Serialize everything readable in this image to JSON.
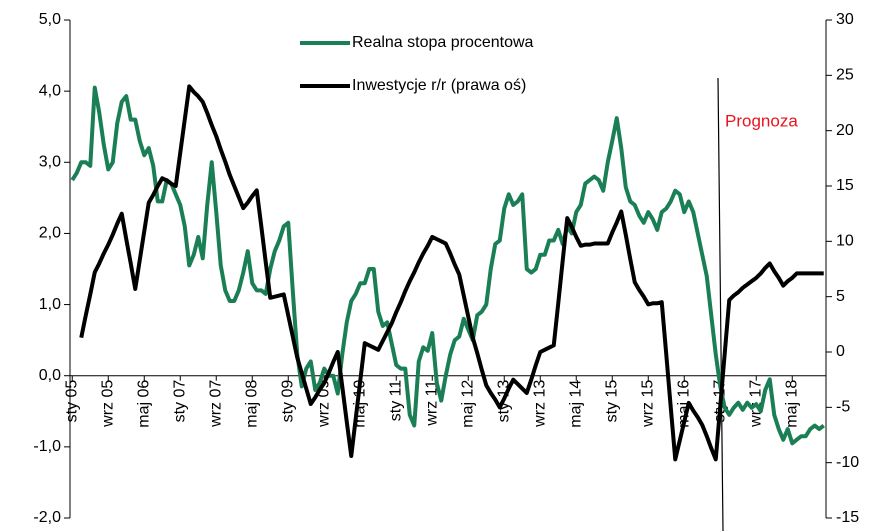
{
  "chart_data": {
    "type": "line",
    "annotation": "Prognoza",
    "categories": [
      "sty 05",
      null,
      null,
      null,
      null,
      null,
      null,
      null,
      "wrz 05",
      null,
      null,
      null,
      null,
      null,
      null,
      null,
      "maj 06",
      null,
      null,
      null,
      null,
      null,
      null,
      null,
      "sty 07",
      null,
      null,
      null,
      null,
      null,
      null,
      null,
      "wrz 07",
      null,
      null,
      null,
      null,
      null,
      null,
      null,
      "maj 08",
      null,
      null,
      null,
      null,
      null,
      null,
      null,
      "sty 09",
      null,
      null,
      null,
      null,
      null,
      null,
      null,
      "wrz 09",
      null,
      null,
      null,
      null,
      null,
      null,
      null,
      "maj 10",
      null,
      null,
      null,
      null,
      null,
      null,
      null,
      "sty 11",
      null,
      null,
      null,
      null,
      null,
      null,
      null,
      "wrz 11",
      null,
      null,
      null,
      null,
      null,
      null,
      null,
      "maj 12",
      null,
      null,
      null,
      null,
      null,
      null,
      null,
      "sty 13",
      null,
      null,
      null,
      null,
      null,
      null,
      null,
      "wrz 13",
      null,
      null,
      null,
      null,
      null,
      null,
      null,
      "maj 14",
      null,
      null,
      null,
      null,
      null,
      null,
      null,
      "sty 15",
      null,
      null,
      null,
      null,
      null,
      null,
      null,
      "wrz 15",
      null,
      null,
      null,
      null,
      null,
      null,
      null,
      "maj 16",
      null,
      null,
      null,
      null,
      null,
      null,
      null,
      "sty 17",
      null,
      null,
      null,
      null,
      null,
      null,
      null,
      "wrz 17",
      null,
      null,
      null,
      null,
      null,
      null,
      null,
      "maj 18",
      null,
      null,
      null,
      null,
      null,
      null,
      null
    ],
    "series": [
      {
        "name": "Realna stopa procentowa",
        "color": "#1b7f56",
        "values": [
          2.75,
          2.85,
          3.0,
          3.0,
          2.95,
          4.05,
          3.7,
          3.25,
          2.9,
          3.0,
          3.55,
          3.85,
          3.93,
          3.6,
          3.6,
          3.3,
          3.1,
          3.2,
          2.95,
          2.45,
          2.45,
          2.75,
          2.7,
          2.55,
          2.4,
          2.1,
          1.55,
          1.7,
          1.95,
          1.65,
          2.4,
          3.0,
          2.3,
          1.55,
          1.2,
          1.05,
          1.05,
          1.2,
          1.45,
          1.75,
          1.3,
          1.2,
          1.2,
          1.15,
          1.5,
          1.75,
          1.9,
          2.1,
          2.15,
          1.2,
          0.3,
          -0.15,
          0.1,
          0.2,
          -0.2,
          -0.1,
          0.1,
          0.0,
          0.0,
          -0.25,
          0.3,
          0.75,
          1.05,
          1.15,
          1.3,
          1.3,
          1.5,
          1.5,
          0.9,
          0.7,
          0.75,
          0.45,
          0.15,
          0.1,
          0.1,
          -0.55,
          -0.7,
          0.2,
          0.4,
          0.35,
          0.6,
          -0.1,
          -0.35,
          0.0,
          0.3,
          0.5,
          0.55,
          0.8,
          0.65,
          0.5,
          0.85,
          0.9,
          1.0,
          1.5,
          1.85,
          1.9,
          2.35,
          2.55,
          2.4,
          2.45,
          2.55,
          1.5,
          1.45,
          1.5,
          1.7,
          1.7,
          1.9,
          1.9,
          2.05,
          1.85,
          2.1,
          2.0,
          2.3,
          2.4,
          2.7,
          2.75,
          2.8,
          2.75,
          2.6,
          3.0,
          3.3,
          3.62,
          3.2,
          2.65,
          2.45,
          2.4,
          2.25,
          2.15,
          2.3,
          2.2,
          2.05,
          2.3,
          2.35,
          2.45,
          2.6,
          2.55,
          2.3,
          2.45,
          2.3,
          2.0,
          1.7,
          1.4,
          0.85,
          0.3,
          -0.15,
          -0.45,
          -0.55,
          -0.45,
          -0.38,
          -0.48,
          -0.38,
          -0.45,
          -0.4,
          -0.5,
          -0.2,
          -0.05,
          -0.55,
          -0.75,
          -0.9,
          -0.75,
          -0.95,
          -0.9,
          -0.85,
          -0.85,
          -0.75,
          -0.7,
          -0.75,
          -0.7
        ]
      },
      {
        "name": "Inwestycje r/r (prawa oś)",
        "color": "#000000",
        "axis": "y2",
        "values": [
          null,
          null,
          1.3,
          3.3,
          5.2,
          7.2,
          8.0,
          8.9,
          9.7,
          10.6,
          11.6,
          12.5,
          10.2,
          8.0,
          5.7,
          8.3,
          10.9,
          13.5,
          14.2,
          15.0,
          15.7,
          15.5,
          15.2,
          15,
          18,
          21,
          24,
          23.5,
          23.1,
          22.6,
          21.6,
          20.5,
          19.5,
          18.3,
          17.2,
          16,
          15,
          14,
          13,
          13.5,
          14.1,
          14.6,
          11.4,
          8.1,
          4.9,
          5.0,
          5.1,
          5.2,
          3.3,
          1.4,
          -0.5,
          -1.9,
          -3.3,
          -4.7,
          -4.1,
          -3.4,
          -2.8,
          -1.9,
          -0.9,
          0,
          -3.1,
          -6.3,
          -9.4,
          -6.0,
          -2.6,
          0.8,
          0.6,
          0.4,
          0.2,
          1.0,
          1.8,
          2.6,
          3.6,
          4.5,
          5.5,
          6.4,
          7.2,
          8.1,
          8.9,
          9.6,
          10.4,
          10.2,
          10.0,
          9.8,
          8.9,
          7.9,
          7,
          5.1,
          3.2,
          1.3,
          -0.1,
          -1.6,
          -3,
          -3.7,
          -4.3,
          -5,
          -4.2,
          -3.3,
          -2.5,
          -2.9,
          -3.3,
          -3.7,
          -2.5,
          -1.2,
          0,
          0.2,
          0.4,
          0.6,
          4.4,
          8.3,
          12.1,
          11.3,
          10.4,
          9.6,
          9.7,
          9.7,
          9.8,
          9.8,
          9.8,
          9.8,
          10.8,
          11.7,
          12.7,
          10.6,
          8.4,
          6.3,
          5.6,
          5.0,
          4.3,
          4.4,
          4.4,
          4.5,
          -0.2,
          -5.0,
          -9.7,
          -8.0,
          -6.3,
          -4.6,
          -5.3,
          -5.9,
          -6.6,
          -7.6,
          -8.7,
          -9.7,
          -4.9,
          -0.1,
          4.7,
          5.1,
          5.4,
          5.8,
          6.1,
          6.4,
          6.7,
          7.1,
          7.6,
          8,
          7.3,
          6.7,
          6,
          6.4,
          6.7,
          7.1,
          7.1,
          7.1,
          7.1,
          7.1,
          7.1,
          7.1
        ]
      }
    ],
    "ylim": [
      -2,
      5
    ],
    "yticks": [
      {
        "value": -2,
        "label": "-2,0"
      },
      {
        "value": -1,
        "label": "-1,0"
      },
      {
        "value": 0,
        "label": "0,0"
      },
      {
        "value": 1,
        "label": "1,0"
      },
      {
        "value": 2,
        "label": "2,0"
      },
      {
        "value": 3,
        "label": "3,0"
      },
      {
        "value": 4,
        "label": "4,0"
      },
      {
        "value": 5,
        "label": "5,0"
      }
    ],
    "y2lim": [
      -15,
      30
    ],
    "y2ticks": [
      -15,
      -10,
      -5,
      0,
      5,
      10,
      15,
      20,
      25,
      30
    ],
    "grid": false
  }
}
